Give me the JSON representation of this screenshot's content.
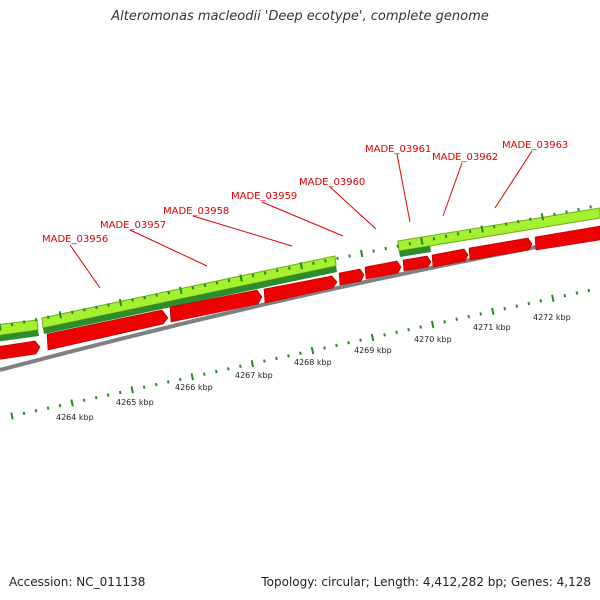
{
  "title": "Alteromonas macleodii 'Deep ecotype', complete genome",
  "footer": {
    "accession": "Accession: NC_011138",
    "topology": "Topology: circular; Length: 4,412,282 bp; Genes: 4,128"
  },
  "colors": {
    "gene_label": "#e00000",
    "forward_feature": "#99ee22",
    "forward_feature_dark": "#2e8b2e",
    "reverse_feature": "#ee0000",
    "backbone": "#888888",
    "tick": "#228b22"
  },
  "gene_labels": [
    "MADE_03956",
    "MADE_03957",
    "MADE_03958",
    "MADE_03959",
    "MADE_03960",
    "MADE_03961",
    "MADE_03962",
    "MADE_03963"
  ],
  "scale_labels": [
    "4264 kbp",
    "4265 kbp",
    "4266 kbp",
    "4267 kbp",
    "4268 kbp",
    "4269 kbp",
    "4270 kbp",
    "4271 kbp",
    "4272 kbp"
  ]
}
